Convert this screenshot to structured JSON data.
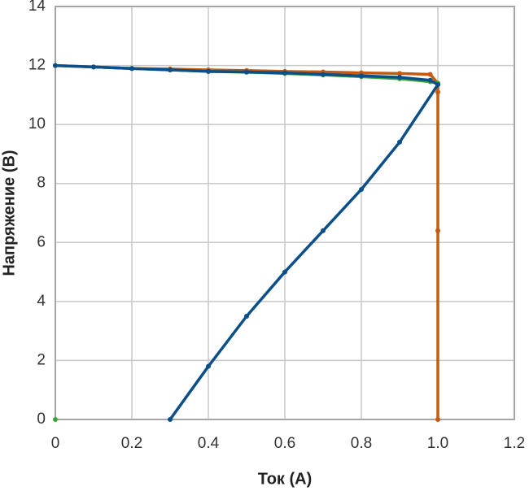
{
  "chart_data": {
    "type": "line",
    "x_label": "Ток (А)",
    "y_label": "Напряжение (В)",
    "xlim": [
      0,
      1.2
    ],
    "xticks": [
      0,
      0.2,
      0.4,
      0.6,
      0.8,
      {
        "value": 1,
        "label": "1.0"
      },
      1.2
    ],
    "ylim": [
      0,
      14
    ],
    "yticks": [
      0,
      2,
      4,
      6,
      8,
      10,
      12,
      14
    ],
    "grid": true,
    "series": [
      {
        "color": "#c55a11",
        "x": [
          0,
          0.1,
          0.2,
          0.3,
          0.4,
          0.5,
          0.6,
          0.7,
          0.8,
          0.9,
          0.98,
          1.0,
          1.0,
          1.0,
          1.0
        ],
        "values": [
          12,
          11.95,
          11.9,
          11.88,
          11.85,
          11.83,
          11.8,
          11.78,
          11.75,
          11.73,
          11.7,
          11.4,
          11.1,
          6.4,
          0
        ]
      },
      {
        "color": "#3aa63a",
        "x": [
          0,
          0,
          0.1,
          0.2,
          0.3,
          0.4,
          0.5,
          0.6,
          0.7,
          0.8,
          0.9,
          0.98,
          1.0
        ],
        "values": [
          0,
          null,
          11.95,
          11.9,
          11.85,
          11.8,
          11.77,
          11.73,
          11.68,
          11.62,
          11.55,
          11.45,
          11.4
        ]
      },
      {
        "color": "#0b4f8a",
        "x": [
          0,
          0.1,
          0.2,
          0.3,
          0.4,
          0.5,
          0.6,
          0.7,
          0.8,
          0.9,
          0.98,
          1.0,
          0.9,
          0.8,
          0.7,
          0.6,
          0.5,
          0.4,
          0.3
        ],
        "values": [
          12,
          11.95,
          11.9,
          11.85,
          11.8,
          11.78,
          11.75,
          11.7,
          11.65,
          11.6,
          11.5,
          11.35,
          9.4,
          7.8,
          6.4,
          5.0,
          3.5,
          1.8,
          0
        ]
      }
    ]
  }
}
